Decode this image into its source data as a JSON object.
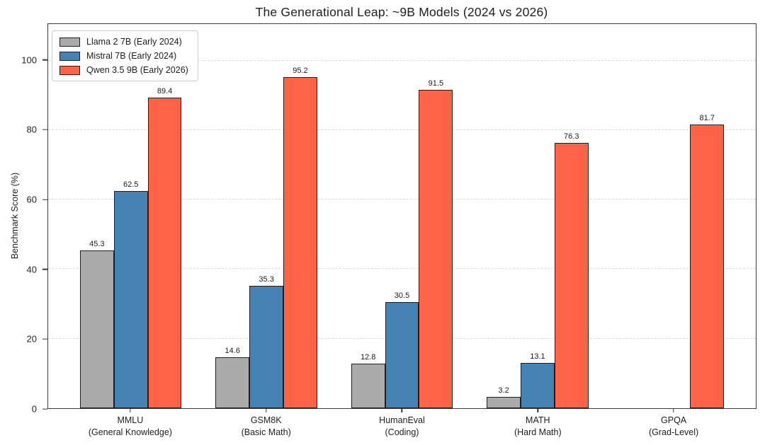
{
  "chart_data": {
    "type": "bar",
    "title": "The Generational Leap: ~9B Models (2024 vs 2026)",
    "ylabel": "Benchmark Score (%)",
    "ylim": [
      0,
      100
    ],
    "yticks": [
      0,
      20,
      40,
      60,
      80,
      100
    ],
    "grid": "horizontal-dashed",
    "legend_position": "upper-left",
    "categories": [
      {
        "label": "MMLU",
        "sublabel": "(General Knowledge)"
      },
      {
        "label": "GSM8K",
        "sublabel": "(Basic Math)"
      },
      {
        "label": "HumanEval",
        "sublabel": "(Coding)"
      },
      {
        "label": "MATH",
        "sublabel": "(Hard Math)"
      },
      {
        "label": "GPQA",
        "sublabel": "(Grad-Level)"
      }
    ],
    "series": [
      {
        "name": "Llama 2 7B (Early 2024)",
        "color": "#ababab",
        "values": [
          45.3,
          14.6,
          12.8,
          3.2,
          null
        ]
      },
      {
        "name": "Mistral 7B (Early 2024)",
        "color": "#4682b4",
        "values": [
          62.5,
          35.3,
          30.5,
          13.1,
          null
        ]
      },
      {
        "name": "Qwen 3.5 9B (Early 2026)",
        "color": "#ff6347",
        "values": [
          89.4,
          95.2,
          91.5,
          76.3,
          81.7
        ]
      }
    ]
  }
}
